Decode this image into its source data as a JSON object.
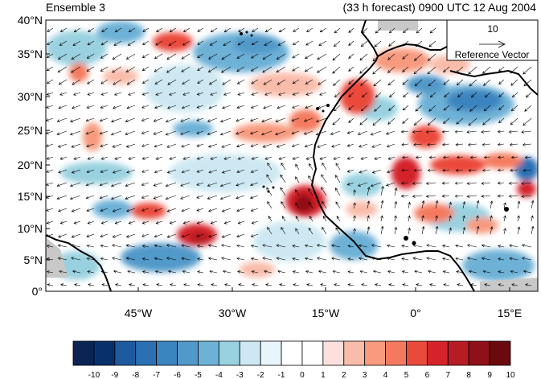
{
  "title_left": "Ensemble 3",
  "title_right": "(33 h forecast) 0900 UTC 12 Aug 2004",
  "reference_vector": {
    "magnitude": "10",
    "label": "Reference Vector"
  },
  "lat_labels": [
    "40°N",
    "35°N",
    "30°N",
    "25°N",
    "20°N",
    "15°N",
    "10°N",
    "5°N",
    "0°"
  ],
  "lon_labels": [
    "45°W",
    "30°W",
    "15°W",
    "0°",
    "15°E"
  ],
  "colorbar": {
    "labels": [
      "-10",
      "-9",
      "-8",
      "-7",
      "-6",
      "-5",
      "-4",
      "-3",
      "-2",
      "-1",
      "0",
      "1",
      "2",
      "3",
      "4",
      "5",
      "6",
      "7",
      "8",
      "9",
      "10"
    ],
    "colors": [
      "#0b2454",
      "#08306b",
      "#1d5a9e",
      "#2a70b2",
      "#3a84c0",
      "#5199c9",
      "#6db1d6",
      "#99d1e0",
      "#cde8f2",
      "#e8f5fb",
      "#ffffff",
      "#ffffff",
      "#fde0dd",
      "#f9bcaa",
      "#f79a7e",
      "#f47a5f",
      "#ea4a3a",
      "#d4232a",
      "#b51c24",
      "#8f1019",
      "#6a0a0f"
    ]
  },
  "map": {
    "extent": {
      "lon_min": -58,
      "lon_max": 19,
      "lat_min": 0,
      "lat_max": 40
    },
    "colors": {
      "coast": "#000000",
      "missing": "#c8c8c8",
      "vector": "#000000"
    }
  }
}
